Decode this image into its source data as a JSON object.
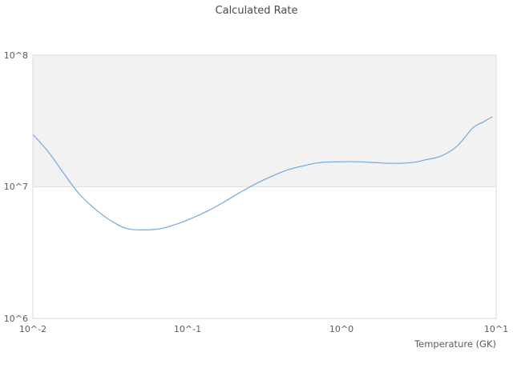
{
  "chart_data": {
    "type": "line",
    "title": "Calculated Rate",
    "xlabel": "Temperature (GK)",
    "ylabel": "",
    "x_scale": "log",
    "y_scale": "log",
    "xlim": [
      0.01,
      10
    ],
    "ylim": [
      1000000.0,
      100000000.0
    ],
    "x_tick_values": [
      0.01,
      0.1,
      1,
      10
    ],
    "x_tick_labels": [
      "10^-2",
      "10^-1",
      "10^0",
      "10^1"
    ],
    "y_tick_values": [
      1000000.0,
      10000000.0,
      100000000.0
    ],
    "y_tick_labels": [
      "10^6",
      "10^7",
      "10^8"
    ],
    "legend": "none",
    "grid": "off",
    "highlight_band": {
      "from": 10000000.0,
      "to": 100000000.0,
      "color": "#f2f2f2",
      "edge_color": "#e0e0e0"
    },
    "frame_color": "#d9d9d9",
    "line_color": "#74a9dd",
    "line_width": 1.2,
    "series": [
      {
        "name": "Calculated Rate",
        "x": [
          0.01,
          0.0126,
          0.0159,
          0.02,
          0.026,
          0.033,
          0.041,
          0.053,
          0.067,
          0.085,
          0.108,
          0.137,
          0.174,
          0.221,
          0.28,
          0.356,
          0.452,
          0.574,
          0.729,
          1.0,
          1.26,
          1.6,
          2.0,
          2.41,
          3.0,
          3.45,
          4.38,
          5.56,
          7.06,
          8.2,
          9.4
        ],
        "y": [
          25000000.0,
          18400000.0,
          12600000.0,
          8800000.0,
          6600000.0,
          5400000.0,
          4800000.0,
          4700000.0,
          4800000.0,
          5200000.0,
          5800000.0,
          6600000.0,
          7700000.0,
          9100000.0,
          10600000.0,
          12100000.0,
          13500000.0,
          14500000.0,
          15300000.0,
          15500000.0,
          15500000.0,
          15300000.0,
          15100000.0,
          15100000.0,
          15400000.0,
          16000000.0,
          17100000.0,
          20300000.0,
          28000000.0,
          31000000.0,
          34000000.0
        ]
      }
    ]
  }
}
